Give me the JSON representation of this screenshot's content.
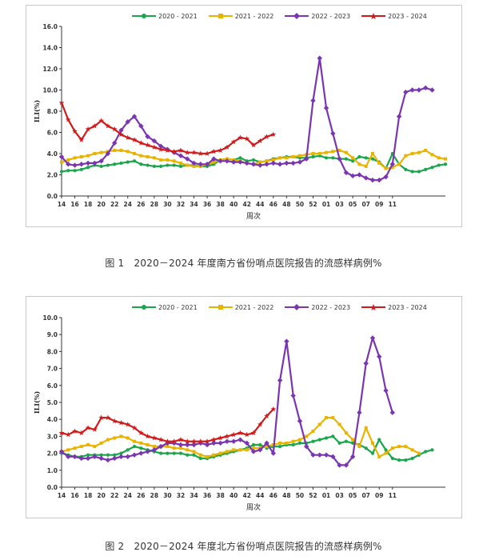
{
  "chart_data": [
    {
      "type": "line",
      "title": "",
      "ylabel": "ILI(%)",
      "xlabel": "周次",
      "ylim": [
        0,
        16
      ],
      "yticks": [
        "0.0",
        "2.0",
        "4.0",
        "6.0",
        "8.0",
        "10.0",
        "12.0",
        "14.0",
        "16.0"
      ],
      "x_ticks": [
        "14",
        "16",
        "18",
        "20",
        "22",
        "24",
        "26",
        "28",
        "30",
        "32",
        "34",
        "36",
        "38",
        "40",
        "42",
        "44",
        "46",
        "48",
        "50",
        "52",
        "01",
        "03",
        "05",
        "07",
        "09",
        "11"
      ],
      "grid": false,
      "legend_position": "top",
      "series": [
        {
          "name": "2020 - 2021",
          "color": "#1aa64a",
          "marker": "circle",
          "values": [
            2.3,
            2.4,
            2.4,
            2.5,
            2.7,
            2.9,
            2.8,
            2.9,
            3.0,
            3.1,
            3.2,
            3.3,
            3.0,
            2.9,
            2.8,
            2.8,
            2.9,
            2.9,
            2.8,
            2.9,
            2.9,
            2.8,
            2.8,
            3.0,
            3.4,
            3.5,
            3.4,
            3.6,
            3.3,
            3.4,
            3.2,
            3.3,
            3.5,
            3.6,
            3.7,
            3.7,
            3.6,
            3.6,
            3.7,
            3.8,
            3.6,
            3.6,
            3.5,
            3.5,
            3.3,
            3.7,
            3.6,
            3.5,
            3.2,
            2.6,
            4.0,
            3.0,
            2.5,
            2.3,
            2.3,
            2.5,
            2.7,
            2.9,
            3.0
          ]
        },
        {
          "name": "2021 - 2022",
          "color": "#e8b400",
          "marker": "square",
          "values": [
            3.2,
            3.4,
            3.6,
            3.7,
            3.8,
            4.0,
            4.1,
            4.2,
            4.3,
            4.3,
            4.2,
            4.0,
            3.8,
            3.7,
            3.6,
            3.4,
            3.4,
            3.3,
            3.1,
            2.9,
            2.8,
            2.8,
            3.0,
            3.2,
            3.4,
            3.5,
            3.4,
            3.3,
            3.1,
            3.0,
            3.2,
            3.3,
            3.4,
            3.6,
            3.6,
            3.7,
            3.8,
            3.9,
            4.0,
            4.0,
            4.1,
            4.2,
            4.3,
            4.1,
            3.6,
            3.0,
            2.8,
            4.0,
            3.1,
            2.6,
            2.7,
            3.0,
            3.8,
            4.0,
            4.1,
            4.3,
            3.9,
            3.6,
            3.5
          ]
        },
        {
          "name": "2022 - 2023",
          "color": "#7a35b0",
          "marker": "diamond",
          "values": [
            3.7,
            3.0,
            2.9,
            3.0,
            3.1,
            3.1,
            3.3,
            4.0,
            5.0,
            6.2,
            7.0,
            7.5,
            6.6,
            5.6,
            5.2,
            4.7,
            4.4,
            4.1,
            3.8,
            3.5,
            3.1,
            3.0,
            3.0,
            3.5,
            3.3,
            3.3,
            3.2,
            3.2,
            3.1,
            3.0,
            2.9,
            3.0,
            3.1,
            3.0,
            3.1,
            3.1,
            3.2,
            3.5,
            9.0,
            13.0,
            8.3,
            5.9,
            3.5,
            2.2,
            1.9,
            2.0,
            1.7,
            1.5,
            1.5,
            1.8,
            3.0,
            7.5,
            9.8,
            10.0,
            10.0,
            10.2,
            10.0
          ]
        },
        {
          "name": "2023 - 2024",
          "color": "#d11a1a",
          "marker": "star",
          "values": [
            8.8,
            7.2,
            6.1,
            5.3,
            6.3,
            6.6,
            7.1,
            6.6,
            6.3,
            5.8,
            5.5,
            5.3,
            5.0,
            4.8,
            4.6,
            4.4,
            4.3,
            4.2,
            4.3,
            4.1,
            4.1,
            4.0,
            4.0,
            4.2,
            4.3,
            4.6,
            5.1,
            5.5,
            5.4,
            4.8,
            5.2,
            5.6,
            5.8
          ]
        }
      ]
    },
    {
      "type": "line",
      "title": "",
      "ylabel": "ILI(%)",
      "xlabel": "周次",
      "ylim": [
        0,
        10
      ],
      "yticks": [
        "0.0",
        "1.0",
        "2.0",
        "3.0",
        "4.0",
        "5.0",
        "6.0",
        "7.0",
        "8.0",
        "9.0",
        "10.0"
      ],
      "x_ticks": [
        "14",
        "16",
        "18",
        "20",
        "22",
        "24",
        "26",
        "28",
        "30",
        "32",
        "34",
        "36",
        "38",
        "40",
        "42",
        "44",
        "46",
        "48",
        "50",
        "52",
        "01",
        "03",
        "05",
        "07",
        "09",
        "11"
      ],
      "grid": false,
      "legend_position": "top",
      "series": [
        {
          "name": "2020 - 2021",
          "color": "#1aa64a",
          "marker": "circle",
          "values": [
            2.0,
            1.9,
            1.8,
            1.8,
            1.9,
            1.9,
            1.9,
            1.9,
            1.9,
            2.0,
            2.2,
            2.4,
            2.3,
            2.2,
            2.1,
            2.0,
            2.0,
            2.0,
            2.0,
            1.9,
            1.9,
            1.7,
            1.7,
            1.8,
            1.9,
            2.0,
            2.1,
            2.2,
            2.3,
            2.5,
            2.5,
            2.3,
            2.4,
            2.4,
            2.5,
            2.5,
            2.6,
            2.6,
            2.7,
            2.8,
            2.9,
            3.0,
            2.6,
            2.7,
            2.6,
            2.5,
            2.3,
            2.0,
            2.8,
            2.2,
            1.7,
            1.6,
            1.6,
            1.7,
            1.9,
            2.1,
            2.2
          ]
        },
        {
          "name": "2021 - 2022",
          "color": "#e8b400",
          "marker": "square",
          "values": [
            2.1,
            2.2,
            2.3,
            2.4,
            2.5,
            2.4,
            2.6,
            2.8,
            2.9,
            3.0,
            2.9,
            2.7,
            2.6,
            2.5,
            2.4,
            2.4,
            2.4,
            2.3,
            2.3,
            2.2,
            2.1,
            1.9,
            1.8,
            1.9,
            2.0,
            2.1,
            2.2,
            2.2,
            2.2,
            2.3,
            2.3,
            2.4,
            2.5,
            2.6,
            2.6,
            2.7,
            2.8,
            3.0,
            3.3,
            3.7,
            4.1,
            4.1,
            3.7,
            3.2,
            2.8,
            2.4,
            3.5,
            2.6,
            1.8,
            2.0,
            2.3,
            2.4,
            2.4,
            2.2,
            2.0
          ]
        },
        {
          "name": "2022 - 2023",
          "color": "#7a35b0",
          "marker": "diamond",
          "values": [
            2.1,
            1.8,
            1.8,
            1.7,
            1.7,
            1.8,
            1.7,
            1.6,
            1.7,
            1.8,
            1.8,
            1.9,
            2.0,
            2.1,
            2.2,
            2.4,
            2.6,
            2.6,
            2.5,
            2.5,
            2.5,
            2.6,
            2.5,
            2.6,
            2.6,
            2.7,
            2.7,
            2.8,
            2.6,
            2.1,
            2.2,
            2.6,
            2.0,
            6.3,
            8.6,
            5.4,
            3.9,
            2.4,
            1.9,
            1.9,
            1.9,
            1.8,
            1.3,
            1.3,
            1.8,
            4.4,
            7.3,
            8.8,
            7.7,
            5.7,
            4.4
          ]
        },
        {
          "name": "2023 - 2024",
          "color": "#d11a1a",
          "marker": "star",
          "values": [
            3.2,
            3.1,
            3.3,
            3.2,
            3.5,
            3.4,
            4.1,
            4.1,
            3.9,
            3.8,
            3.7,
            3.5,
            3.2,
            3.0,
            2.9,
            2.8,
            2.7,
            2.7,
            2.8,
            2.7,
            2.7,
            2.7,
            2.7,
            2.8,
            2.9,
            3.0,
            3.1,
            3.2,
            3.1,
            3.2,
            3.7,
            4.2,
            4.6
          ]
        }
      ]
    }
  ],
  "captions": [
    "图 1　2020－2024 年度南方省份哨点医院报告的流感样病例%",
    "图 2　2020－2024 年度北方省份哨点医院报告的流感样病例%"
  ]
}
